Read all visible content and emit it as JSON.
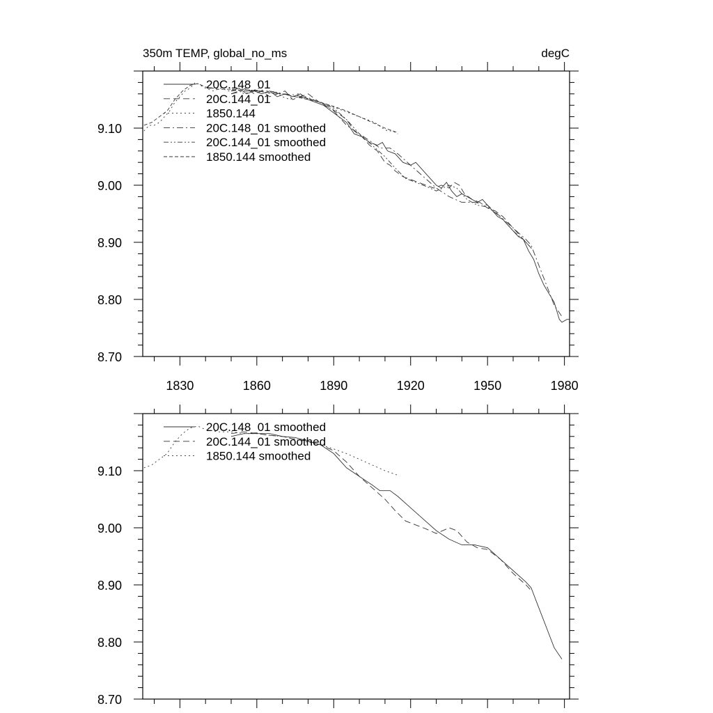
{
  "chart_data": [
    {
      "type": "line",
      "title_left": "350m TEMP, global_no_ms",
      "title_right": "degC",
      "xlim": [
        1815.5,
        1982
      ],
      "ylim": [
        8.7,
        9.2
      ],
      "xticks": [
        1830,
        1860,
        1890,
        1920,
        1950,
        1980
      ],
      "xtick_labels": [
        "1830",
        "1860",
        "1890",
        "1920",
        "1950",
        "1980"
      ],
      "yticks": [
        8.7,
        8.8,
        8.9,
        9.0,
        9.1
      ],
      "ytick_labels": [
        "8.70",
        "8.80",
        "8.90",
        "9.00",
        "9.10"
      ],
      "grid": false,
      "legend_placement": "top-left",
      "color": "#333333",
      "series": [
        {
          "name": "20C.148_01",
          "style": "solid",
          "x": [
            1850,
            1853,
            1856,
            1859,
            1862,
            1865,
            1868,
            1871,
            1874,
            1877,
            1880,
            1883,
            1886,
            1889,
            1892,
            1895,
            1898,
            1901,
            1904,
            1907,
            1909,
            1911,
            1914,
            1917,
            1920,
            1922,
            1924,
            1926,
            1928,
            1930,
            1932,
            1934,
            1936,
            1938,
            1940,
            1942,
            1944,
            1946,
            1948,
            1950,
            1952,
            1954,
            1956,
            1958,
            1960,
            1962,
            1964,
            1966,
            1968,
            1970,
            1972,
            1974,
            1976,
            1978,
            1979,
            1981,
            1982
          ],
          "y": [
            9.165,
            9.17,
            9.16,
            9.165,
            9.16,
            9.165,
            9.155,
            9.16,
            9.155,
            9.16,
            9.15,
            9.145,
            9.14,
            9.13,
            9.12,
            9.11,
            9.09,
            9.085,
            9.075,
            9.07,
            9.075,
            9.06,
            9.055,
            9.04,
            9.035,
            9.04,
            9.03,
            9.02,
            9.01,
            9.0,
            8.995,
            9.005,
            8.99,
            8.98,
            8.985,
            8.98,
            8.975,
            8.97,
            8.975,
            8.965,
            8.955,
            8.945,
            8.94,
            8.93,
            8.92,
            8.91,
            8.905,
            8.885,
            8.87,
            8.845,
            8.825,
            8.81,
            8.795,
            8.765,
            8.76,
            8.765,
            8.765
          ]
        },
        {
          "name": "20C.144_01",
          "style": "dashed",
          "x": [
            1850,
            1853,
            1856,
            1859,
            1862,
            1865,
            1868,
            1871,
            1874,
            1877,
            1880,
            1883,
            1886,
            1889,
            1892,
            1895,
            1898,
            1901,
            1904,
            1907,
            1910,
            1912,
            1914,
            1917,
            1920,
            1923,
            1926,
            1929,
            1932,
            1935,
            1937,
            1939,
            1941,
            1944,
            1947,
            1950,
            1953,
            1956,
            1959,
            1962,
            1965,
            1967,
            1968
          ],
          "y": [
            9.16,
            9.165,
            9.17,
            9.16,
            9.165,
            9.155,
            9.16,
            9.165,
            9.15,
            9.155,
            9.16,
            9.15,
            9.14,
            9.135,
            9.125,
            9.115,
            9.095,
            9.085,
            9.07,
            9.06,
            9.04,
            9.035,
            9.025,
            9.015,
            9.01,
            9.005,
            9.0,
            8.995,
            9.0,
            8.995,
            9.005,
            9.0,
            8.985,
            8.975,
            8.97,
            8.96,
            8.955,
            8.945,
            8.93,
            8.915,
            8.9,
            8.89,
            8.885
          ]
        },
        {
          "name": "1850.144",
          "style": "dotted",
          "x": [
            1816,
            1818,
            1820,
            1822,
            1824,
            1826,
            1828,
            1830,
            1832,
            1834,
            1836,
            1838,
            1840,
            1843,
            1846,
            1849,
            1852,
            1855,
            1858,
            1861,
            1864,
            1867,
            1870,
            1873,
            1876,
            1879,
            1882,
            1885,
            1888,
            1891,
            1894,
            1897,
            1900,
            1903,
            1906,
            1909,
            1911,
            1913,
            1915
          ],
          "y": [
            9.095,
            9.105,
            9.105,
            9.11,
            9.12,
            9.13,
            9.145,
            9.155,
            9.165,
            9.17,
            9.18,
            9.175,
            9.17,
            9.165,
            9.17,
            9.165,
            9.17,
            9.16,
            9.165,
            9.17,
            9.16,
            9.165,
            9.155,
            9.15,
            9.16,
            9.155,
            9.15,
            9.145,
            9.14,
            9.135,
            9.13,
            9.125,
            9.12,
            9.115,
            9.11,
            9.1,
            9.095,
            9.095,
            9.09
          ]
        },
        {
          "name": "20C.148_01 smoothed",
          "style": "dashdot",
          "ref": "s148"
        },
        {
          "name": "20C.144_01 smoothed",
          "style": "dashdotdot",
          "ref": "s144"
        },
        {
          "name": "1850.144 smoothed",
          "style": "shortdash",
          "ref": "s1850"
        }
      ]
    },
    {
      "type": "line",
      "xlim": [
        1815.5,
        1982
      ],
      "ylim": [
        8.7,
        9.2
      ],
      "xticks": [
        1830,
        1860,
        1890,
        1920,
        1950,
        1980
      ],
      "yticks": [
        8.7,
        8.8,
        8.9,
        9.0,
        9.1
      ],
      "ytick_labels": [
        "8.70",
        "8.80",
        "8.90",
        "9.00",
        "9.10"
      ],
      "grid": false,
      "legend_placement": "top-left",
      "color": "#333333",
      "series": [
        {
          "name": "20C.148_01 smoothed",
          "style": "solid",
          "ref": "s148"
        },
        {
          "name": "20C.144_01 smoothed",
          "style": "dashed",
          "ref": "s144"
        },
        {
          "name": "1850.144 smoothed",
          "style": "dotted",
          "ref": "s1850"
        }
      ]
    }
  ],
  "smoothed": {
    "s148": {
      "x": [
        1850,
        1855,
        1860,
        1865,
        1870,
        1875,
        1880,
        1885,
        1890,
        1895,
        1900,
        1905,
        1908,
        1912,
        1915,
        1920,
        1925,
        1930,
        1935,
        1940,
        1945,
        1950,
        1955,
        1960,
        1965,
        1967,
        1970,
        1973,
        1976,
        1979
      ],
      "y": [
        9.16,
        9.165,
        9.165,
        9.165,
        9.16,
        9.158,
        9.152,
        9.145,
        9.13,
        9.105,
        9.09,
        9.075,
        9.065,
        9.065,
        9.055,
        9.035,
        9.015,
        8.995,
        8.98,
        8.97,
        8.97,
        8.965,
        8.945,
        8.925,
        8.905,
        8.895,
        8.86,
        8.825,
        8.79,
        8.77
      ]
    },
    "s144": {
      "x": [
        1850,
        1855,
        1860,
        1865,
        1870,
        1875,
        1880,
        1885,
        1890,
        1895,
        1900,
        1905,
        1910,
        1914,
        1918,
        1922,
        1926,
        1930,
        1935,
        1938,
        1942,
        1946,
        1950,
        1955,
        1960,
        1965,
        1967
      ],
      "y": [
        9.165,
        9.168,
        9.165,
        9.162,
        9.16,
        9.155,
        9.152,
        9.145,
        9.135,
        9.115,
        9.09,
        9.07,
        9.05,
        9.03,
        9.012,
        9.005,
        8.998,
        8.99,
        9.0,
        8.995,
        8.975,
        8.965,
        8.962,
        8.945,
        8.92,
        8.9,
        8.89
      ]
    },
    "s1850": {
      "x": [
        1816,
        1819,
        1822,
        1825,
        1828,
        1831,
        1834,
        1837,
        1840,
        1845,
        1850,
        1855,
        1860,
        1865,
        1870,
        1875,
        1880,
        1885,
        1890,
        1895,
        1900,
        1905,
        1910,
        1915
      ],
      "y": [
        9.105,
        9.11,
        9.12,
        9.13,
        9.15,
        9.165,
        9.175,
        9.178,
        9.172,
        9.168,
        9.168,
        9.165,
        9.165,
        9.162,
        9.16,
        9.155,
        9.15,
        9.145,
        9.138,
        9.13,
        9.12,
        9.11,
        9.1,
        9.092
      ]
    }
  }
}
